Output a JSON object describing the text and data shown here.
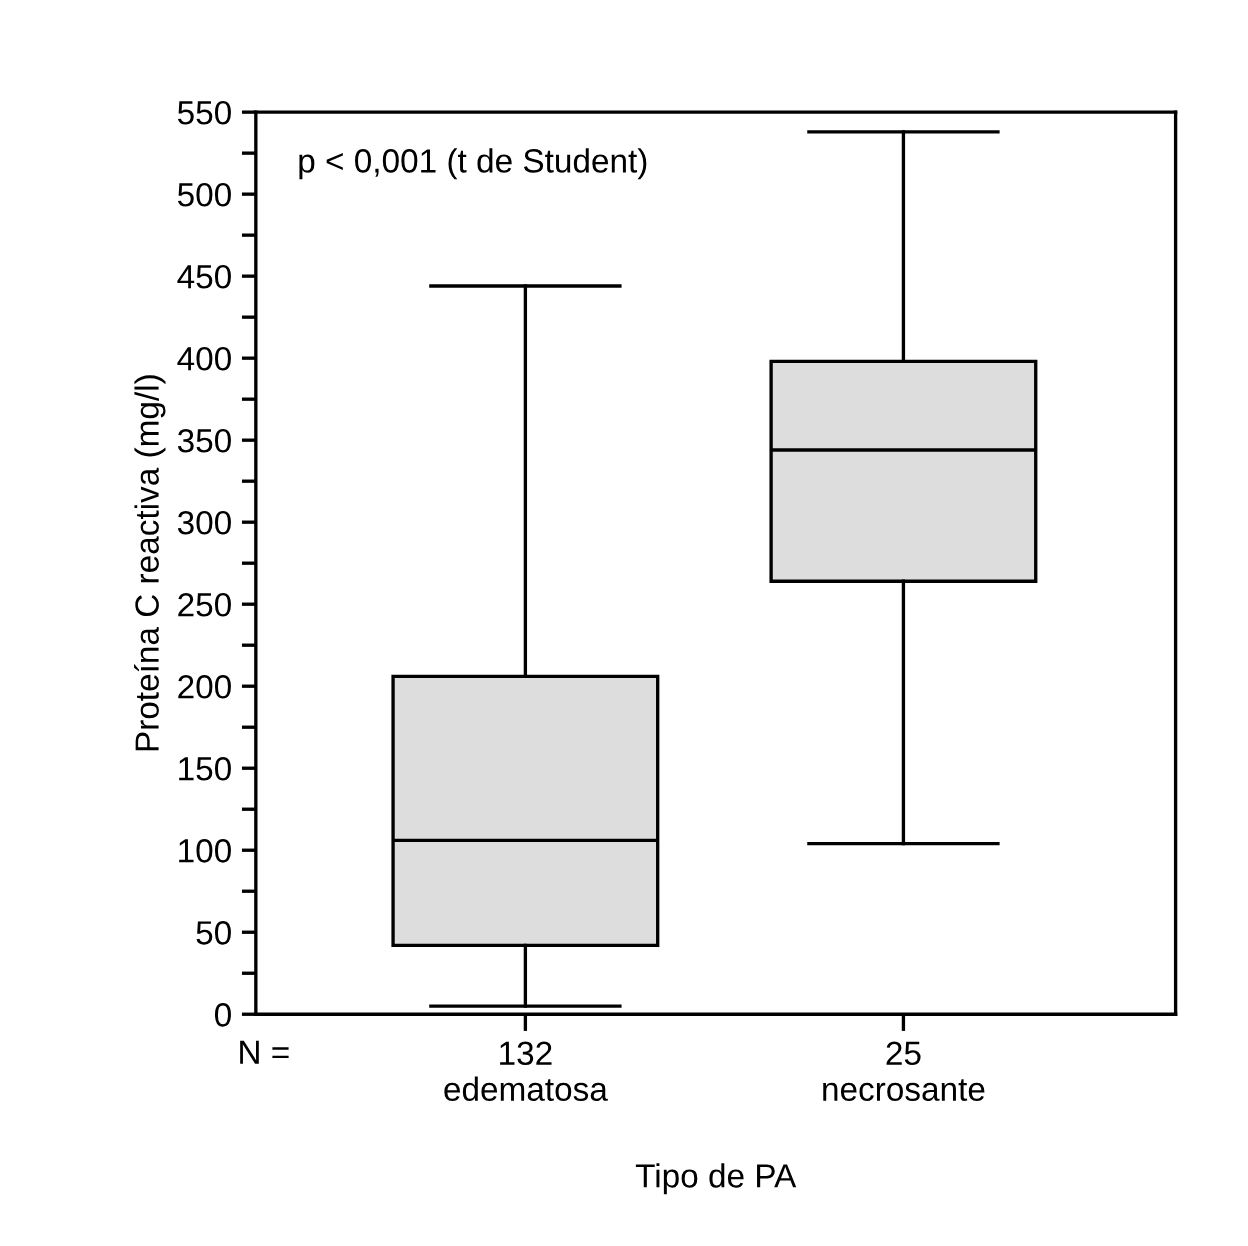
{
  "chart_data": {
    "type": "box",
    "categories": [
      "132\nedematosa",
      "25\nnecrosante"
    ],
    "boxes": [
      {
        "low": 5,
        "q1": 42,
        "median": 106,
        "q3": 206,
        "high": 444
      },
      {
        "low": 104,
        "q1": 264,
        "median": 344,
        "q3": 398,
        "high": 538
      }
    ],
    "color": "#dddddd",
    "xlabel": "Tipo de PA",
    "ylabel": "Proteína C reactiva (mg/l)",
    "ylim": [
      0,
      550
    ],
    "yticks": [
      0,
      {
        "value": 25,
        "label": null
      },
      50,
      {
        "value": 75,
        "label": null
      },
      100,
      {
        "value": 125,
        "label": null
      },
      150,
      {
        "value": 175,
        "label": null
      },
      200,
      {
        "value": 225,
        "label": null
      },
      250,
      {
        "value": 275,
        "label": null
      },
      300,
      {
        "value": 325,
        "label": null
      },
      350,
      {
        "value": 375,
        "label": null
      },
      400,
      {
        "value": 425,
        "label": null
      },
      450,
      {
        "value": 475,
        "label": null
      },
      500,
      {
        "value": 525,
        "label": null
      },
      550
    ],
    "annotations": [
      "p < 0,001 (t de Student)",
      "N ="
    ],
    "grid": false,
    "legend": false
  }
}
